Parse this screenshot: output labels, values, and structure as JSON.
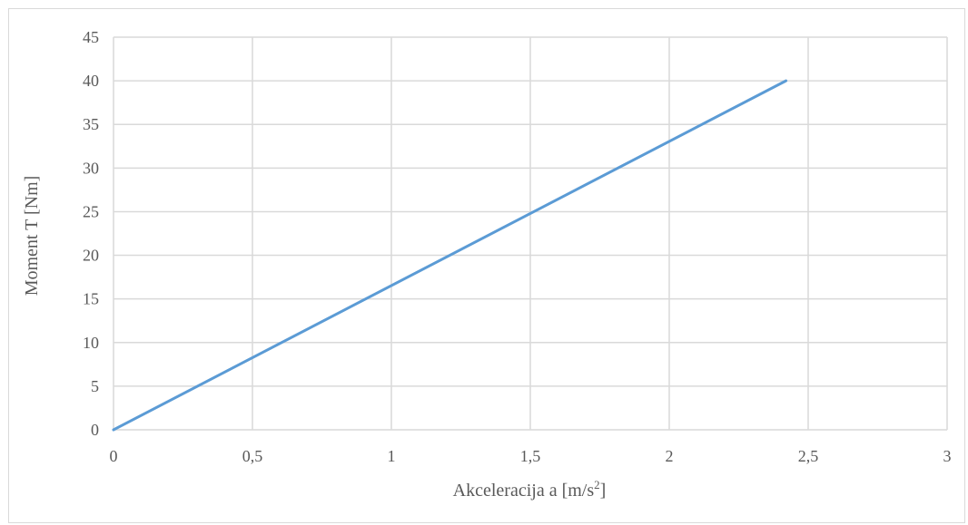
{
  "chart_data": {
    "type": "line",
    "title": "",
    "xlabel": "Akceleracija a [m/s",
    "xlabel_sup": "2",
    "xlabel_end": "]",
    "ylabel": "Moment T [Nm]",
    "xlim": [
      0,
      3
    ],
    "ylim": [
      0,
      45
    ],
    "x_ticks": [
      0,
      0.5,
      1,
      1.5,
      2,
      2.5,
      3
    ],
    "x_tick_labels": [
      "0",
      "0,5",
      "1",
      "1,5",
      "2",
      "2,5",
      "3"
    ],
    "y_ticks": [
      0,
      5,
      10,
      15,
      20,
      25,
      30,
      35,
      40,
      45
    ],
    "y_tick_labels": [
      "0",
      "5",
      "10",
      "15",
      "20",
      "25",
      "30",
      "35",
      "40",
      "45"
    ],
    "grid": true,
    "legend": "none",
    "series": [
      {
        "color": "#5b9bd5",
        "x": [
          0,
          2.42
        ],
        "y": [
          0,
          40
        ]
      }
    ]
  }
}
